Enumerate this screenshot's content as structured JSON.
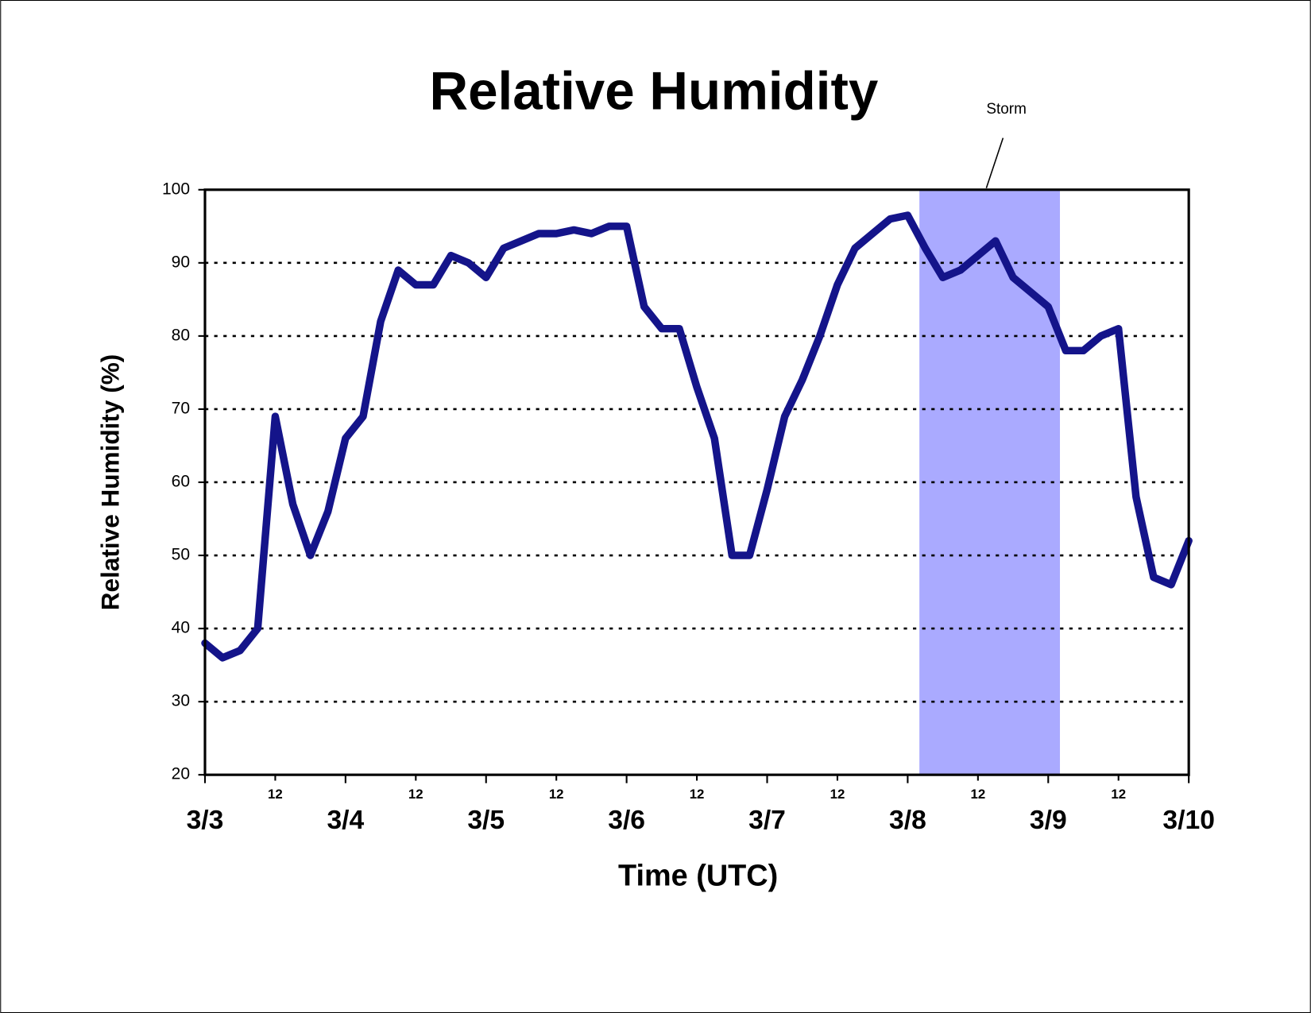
{
  "chart_data": {
    "type": "line",
    "title": "Relative Humidity",
    "x_label": "Time (UTC)",
    "y_label": "Relative Humidity (%)",
    "annotation": {
      "text": "Storm",
      "shade": [
        122,
        146
      ],
      "color": "#aaaaff"
    },
    "x": [
      0,
      3,
      6,
      9,
      12,
      15,
      18,
      21,
      24,
      27,
      30,
      33,
      36,
      39,
      42,
      45,
      48,
      51,
      54,
      57,
      60,
      63,
      66,
      69,
      72,
      75,
      78,
      81,
      84,
      87,
      90,
      93,
      96,
      99,
      102,
      105,
      108,
      111,
      114,
      117,
      120,
      123,
      126,
      129,
      132,
      135,
      138,
      141,
      144,
      147,
      150,
      153,
      156,
      159,
      162,
      165,
      168
    ],
    "series": [
      {
        "name": "Relative Humidity",
        "color": "#14148a",
        "values": [
          38,
          36,
          37,
          40,
          69,
          57,
          50,
          56,
          66,
          69,
          82,
          89,
          87,
          87,
          91,
          90,
          88,
          92,
          93,
          94,
          94,
          94.5,
          94,
          95,
          95,
          84,
          81,
          81,
          73,
          66,
          50,
          50,
          59,
          69,
          74,
          80,
          87,
          92,
          94,
          96,
          96.5,
          92,
          88,
          89,
          91,
          93,
          88,
          86,
          84,
          78,
          78,
          80,
          81,
          58,
          47,
          46,
          52
        ]
      }
    ],
    "xlim": [
      0,
      168
    ],
    "xticks": [
      {
        "value": 0,
        "label": "3/3"
      },
      {
        "value": 12,
        "label": "12"
      },
      {
        "value": 24,
        "label": "3/4"
      },
      {
        "value": 36,
        "label": "12"
      },
      {
        "value": 48,
        "label": "3/5"
      },
      {
        "value": 60,
        "label": "12"
      },
      {
        "value": 72,
        "label": "3/6"
      },
      {
        "value": 84,
        "label": "12"
      },
      {
        "value": 96,
        "label": "3/7"
      },
      {
        "value": 108,
        "label": "12"
      },
      {
        "value": 120,
        "label": "3/8"
      },
      {
        "value": 132,
        "label": "12"
      },
      {
        "value": 144,
        "label": "3/9"
      },
      {
        "value": 156,
        "label": "12"
      },
      {
        "value": 168,
        "label": "3/10"
      }
    ],
    "ylim": [
      20,
      100
    ],
    "yticks": [
      20,
      30,
      40,
      50,
      60,
      70,
      80,
      90,
      100
    ],
    "grid": true
  }
}
